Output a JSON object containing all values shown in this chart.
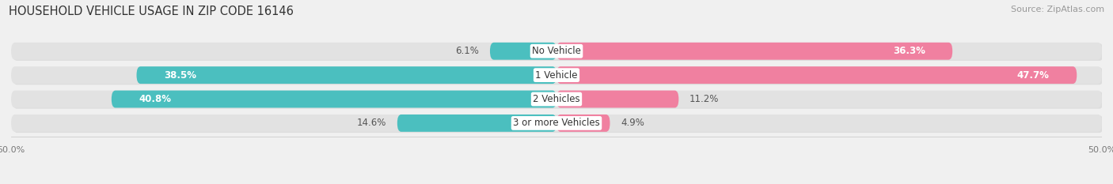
{
  "title": "HOUSEHOLD VEHICLE USAGE IN ZIP CODE 16146",
  "source": "Source: ZipAtlas.com",
  "categories": [
    "No Vehicle",
    "1 Vehicle",
    "2 Vehicles",
    "3 or more Vehicles"
  ],
  "owner_values": [
    6.1,
    38.5,
    40.8,
    14.6
  ],
  "renter_values": [
    36.3,
    47.7,
    11.2,
    4.9
  ],
  "owner_color": "#4BBFBF",
  "renter_color": "#F080A0",
  "owner_color_light": "#7DD8D8",
  "renter_color_light": "#F7B8CC",
  "xlim": [
    -50,
    50
  ],
  "xtick_labels": [
    "50.0%",
    "50.0%"
  ],
  "background_color": "#f0f0f0",
  "bar_background_color": "#e2e2e2",
  "title_fontsize": 10.5,
  "source_fontsize": 8,
  "label_fontsize": 8.5,
  "bar_height": 0.72,
  "bar_gap": 0.18
}
